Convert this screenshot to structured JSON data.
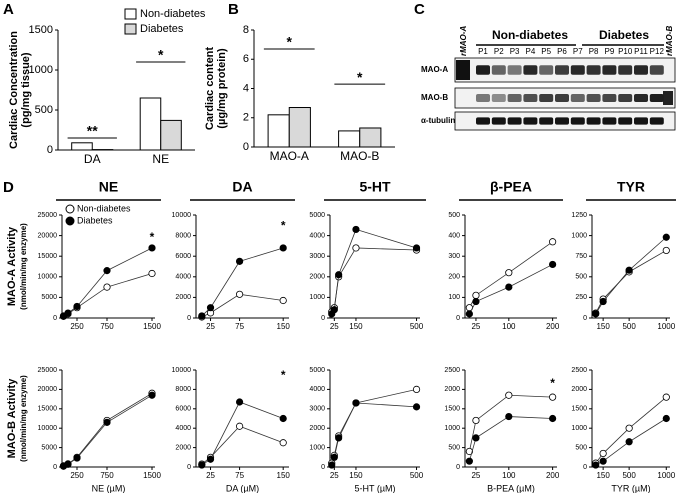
{
  "chart_data": [
    {
      "type": "bar",
      "panel": "A",
      "ylabel": "Cardiac Concentration",
      "ylabel_units": "(pg/mg tissue)",
      "categories": [
        "DA",
        "NE"
      ],
      "series": [
        {
          "name": "Non-diabetes",
          "color": "#ffffff",
          "values": [
            90,
            650
          ]
        },
        {
          "name": "Diabetes",
          "color": "#d9d9d9",
          "values": [
            5,
            370
          ]
        }
      ],
      "ylim": [
        0,
        1500
      ],
      "yticks": [
        0,
        500,
        1000,
        1500
      ],
      "legend": "top",
      "annotations": [
        {
          "text": "**",
          "category": 0,
          "y": 150
        },
        {
          "text": "*",
          "category": 1,
          "y": 1100
        }
      ]
    },
    {
      "type": "bar",
      "panel": "B",
      "ylabel": "Cardiac content",
      "ylabel_units": "(µg/mg protein)",
      "categories": [
        "MAO-A",
        "MAO-B"
      ],
      "series": [
        {
          "color": "#ffffff",
          "values": [
            2.2,
            1.1
          ]
        },
        {
          "color": "#d9d9d9",
          "values": [
            2.7,
            1.3
          ]
        }
      ],
      "ylim": [
        0,
        8
      ],
      "yticks": [
        0,
        2,
        4,
        6,
        8
      ],
      "annotations": [
        {
          "text": "*",
          "category": 0,
          "y": 6.7
        },
        {
          "text": "*",
          "category": 1,
          "y": 4.3
        }
      ]
    },
    {
      "type": "scatter",
      "title": "NE",
      "ylabel": "MAO-A Activity",
      "ylabel_units": "(nmol/min/mg enzyme)",
      "legend": "upper-left",
      "x": [
        25,
        100,
        250,
        750,
        1500
      ],
      "xlim": [
        0,
        1550
      ],
      "xticks": [
        250,
        750,
        1500
      ],
      "ylim": [
        0,
        25000
      ],
      "yticks": [
        0,
        5000,
        10000,
        15000,
        20000,
        25000
      ],
      "series": [
        {
          "name": "Non-diabetes",
          "color": "#ffffff",
          "values": [
            500,
            1000,
            2500,
            7500,
            10800
          ]
        },
        {
          "name": "Diabetes",
          "color": "#000000",
          "values": [
            400,
            1200,
            2800,
            11500,
            17000
          ]
        }
      ],
      "annotations": [
        {
          "text": "*",
          "x": 1500,
          "y": 19500
        }
      ]
    },
    {
      "type": "scatter",
      "title": "DA",
      "x": [
        10,
        25,
        75,
        150
      ],
      "xlim": [
        0,
        160
      ],
      "xticks": [
        25,
        75,
        150
      ],
      "ylim": [
        0,
        10000
      ],
      "yticks": [
        0,
        2000,
        4000,
        6000,
        8000,
        10000
      ],
      "series": [
        {
          "color": "#ffffff",
          "values": [
            100,
            500,
            2300,
            1700
          ]
        },
        {
          "color": "#000000",
          "values": [
            200,
            1000,
            5500,
            6800
          ]
        }
      ],
      "annotations": [
        {
          "text": "*",
          "x": 150,
          "y": 8900
        }
      ]
    },
    {
      "type": "scatter",
      "title": "5-HT",
      "x": [
        10,
        25,
        50,
        150,
        500
      ],
      "xlim": [
        0,
        520
      ],
      "xticks": [
        25,
        150,
        500
      ],
      "ylim": [
        0,
        5000
      ],
      "yticks": [
        0,
        1000,
        2000,
        3000,
        4000,
        5000
      ],
      "series": [
        {
          "color": "#ffffff",
          "values": [
            300,
            500,
            2000,
            3400,
            3300
          ]
        },
        {
          "color": "#000000",
          "values": [
            200,
            400,
            2100,
            4300,
            3400
          ]
        }
      ]
    },
    {
      "type": "scatter",
      "title": "β-PEA",
      "x": [
        10,
        25,
        100,
        200
      ],
      "xlim": [
        0,
        210
      ],
      "xticks": [
        25,
        100,
        200
      ],
      "ylim": [
        0,
        500
      ],
      "yticks": [
        0,
        100,
        200,
        300,
        400,
        500
      ],
      "series": [
        {
          "color": "#ffffff",
          "values": [
            50,
            110,
            220,
            370
          ]
        },
        {
          "color": "#000000",
          "values": [
            20,
            80,
            150,
            260
          ]
        }
      ]
    },
    {
      "type": "scatter",
      "title": "TYR",
      "x": [
        50,
        150,
        500,
        1000
      ],
      "xlim": [
        0,
        1050
      ],
      "xticks": [
        150,
        500,
        1000
      ],
      "ylim": [
        0,
        1250
      ],
      "yticks": [
        0,
        250,
        500,
        750,
        1000,
        1250
      ],
      "series": [
        {
          "color": "#ffffff",
          "values": [
            60,
            230,
            560,
            820
          ]
        },
        {
          "color": "#000000",
          "values": [
            50,
            200,
            580,
            980
          ]
        }
      ]
    },
    {
      "type": "scatter",
      "xlabel": "NE (µM)",
      "ylabel": "MAO-B Activity",
      "ylabel_units": "(nmol/min/mg enzyme)",
      "x": [
        25,
        100,
        250,
        750,
        1500
      ],
      "xlim": [
        0,
        1550
      ],
      "xticks": [
        250,
        750,
        1500
      ],
      "ylim": [
        0,
        25000
      ],
      "yticks": [
        0,
        5000,
        10000,
        15000,
        20000,
        25000
      ],
      "series": [
        {
          "color": "#ffffff",
          "values": [
            300,
            800,
            2500,
            12000,
            19000
          ]
        },
        {
          "color": "#000000",
          "values": [
            200,
            700,
            2300,
            11500,
            18500
          ]
        }
      ]
    },
    {
      "type": "scatter",
      "xlabel": "DA (µM)",
      "x": [
        10,
        25,
        75,
        150
      ],
      "xlim": [
        0,
        160
      ],
      "xticks": [
        25,
        75,
        150
      ],
      "ylim": [
        0,
        10000
      ],
      "yticks": [
        0,
        2000,
        4000,
        6000,
        8000,
        10000
      ],
      "series": [
        {
          "color": "#ffffff",
          "values": [
            300,
            1000,
            4200,
            2500
          ]
        },
        {
          "color": "#000000",
          "values": [
            200,
            800,
            6700,
            5000
          ]
        }
      ],
      "annotations": [
        {
          "text": "*",
          "x": 150,
          "y": 9400
        }
      ]
    },
    {
      "type": "scatter",
      "xlabel": "5-HT (µM)",
      "x": [
        10,
        25,
        50,
        150,
        500
      ],
      "xlim": [
        0,
        520
      ],
      "xticks": [
        25,
        150,
        500
      ],
      "ylim": [
        0,
        5000
      ],
      "yticks": [
        0,
        1000,
        2000,
        3000,
        4000,
        5000
      ],
      "series": [
        {
          "color": "#ffffff",
          "values": [
            200,
            600,
            1600,
            3300,
            4000
          ]
        },
        {
          "color": "#000000",
          "values": [
            100,
            500,
            1500,
            3300,
            3100
          ]
        }
      ]
    },
    {
      "type": "scatter",
      "xlabel": "B-PEA (µM)",
      "x": [
        10,
        25,
        100,
        200
      ],
      "xlim": [
        0,
        210
      ],
      "xticks": [
        25,
        100,
        200
      ],
      "ylim": [
        0,
        2500
      ],
      "yticks": [
        0,
        500,
        1000,
        1500,
        2000,
        2500
      ],
      "series": [
        {
          "color": "#ffffff",
          "values": [
            400,
            1200,
            1850,
            1800
          ]
        },
        {
          "color": "#000000",
          "values": [
            150,
            750,
            1300,
            1250
          ]
        }
      ],
      "annotations": [
        {
          "text": "*",
          "x": 200,
          "y": 2150
        }
      ]
    },
    {
      "type": "scatter",
      "xlabel": "TYR (µM)",
      "x": [
        50,
        150,
        500,
        1000
      ],
      "xlim": [
        0,
        1050
      ],
      "xticks": [
        150,
        500,
        1000
      ],
      "ylim": [
        0,
        2500
      ],
      "yticks": [
        0,
        500,
        1000,
        1500,
        2000,
        2500
      ],
      "series": [
        {
          "color": "#ffffff",
          "values": [
            100,
            350,
            1000,
            1800
          ]
        },
        {
          "color": "#000000",
          "values": [
            50,
            150,
            650,
            1250
          ]
        }
      ]
    }
  ],
  "blot": {
    "panel": "C",
    "left_lane": "rMAO-A",
    "right_lane": "rMAO-B",
    "group_left": "Non-diabetes",
    "group_right": "Diabetes",
    "lanes": [
      "P1",
      "P2",
      "P3",
      "P4",
      "P5",
      "P6",
      "P7",
      "P8",
      "P9",
      "P10",
      "P11",
      "P12"
    ],
    "rows": [
      "MAO-A",
      "MAO-B",
      "α-tubulin"
    ]
  },
  "panel_d": "D"
}
